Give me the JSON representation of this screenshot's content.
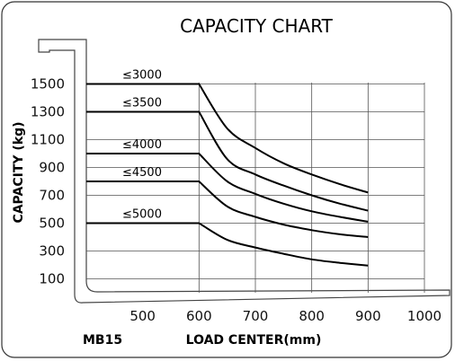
{
  "model": "MB15",
  "chart_data": {
    "type": "line",
    "title": "CAPACITY CHART",
    "xlabel": "LOAD CENTER(mm)",
    "ylabel": "CAPACITY (kg)",
    "xlim": [
      400,
      1000
    ],
    "ylim": [
      0,
      1600
    ],
    "x_ticks": [
      "500",
      "600",
      "700",
      "800",
      "900",
      "1000"
    ],
    "y_ticks": [
      "100",
      "300",
      "500",
      "700",
      "900",
      "1100",
      "1300",
      "1500"
    ],
    "grid": true,
    "series": [
      {
        "name": "≤3000",
        "x": [
          400,
          600,
          650,
          700,
          750,
          800,
          850,
          900
        ],
        "y": [
          1500,
          1500,
          1180,
          1040,
          930,
          850,
          780,
          720
        ]
      },
      {
        "name": "≤3500",
        "x": [
          400,
          600,
          650,
          700,
          750,
          800,
          850,
          900
        ],
        "y": [
          1300,
          1300,
          960,
          850,
          770,
          700,
          640,
          590
        ]
      },
      {
        "name": "≤4000",
        "x": [
          400,
          600,
          650,
          700,
          750,
          800,
          850,
          900
        ],
        "y": [
          1000,
          1000,
          800,
          710,
          640,
          585,
          545,
          510
        ]
      },
      {
        "name": "≤4500",
        "x": [
          400,
          600,
          650,
          700,
          750,
          800,
          850,
          900
        ],
        "y": [
          800,
          800,
          620,
          545,
          490,
          450,
          420,
          400
        ]
      },
      {
        "name": "≤5000",
        "x": [
          400,
          600,
          650,
          700,
          750,
          800,
          850,
          900
        ],
        "y": [
          500,
          500,
          380,
          325,
          280,
          240,
          215,
          195
        ]
      }
    ]
  }
}
